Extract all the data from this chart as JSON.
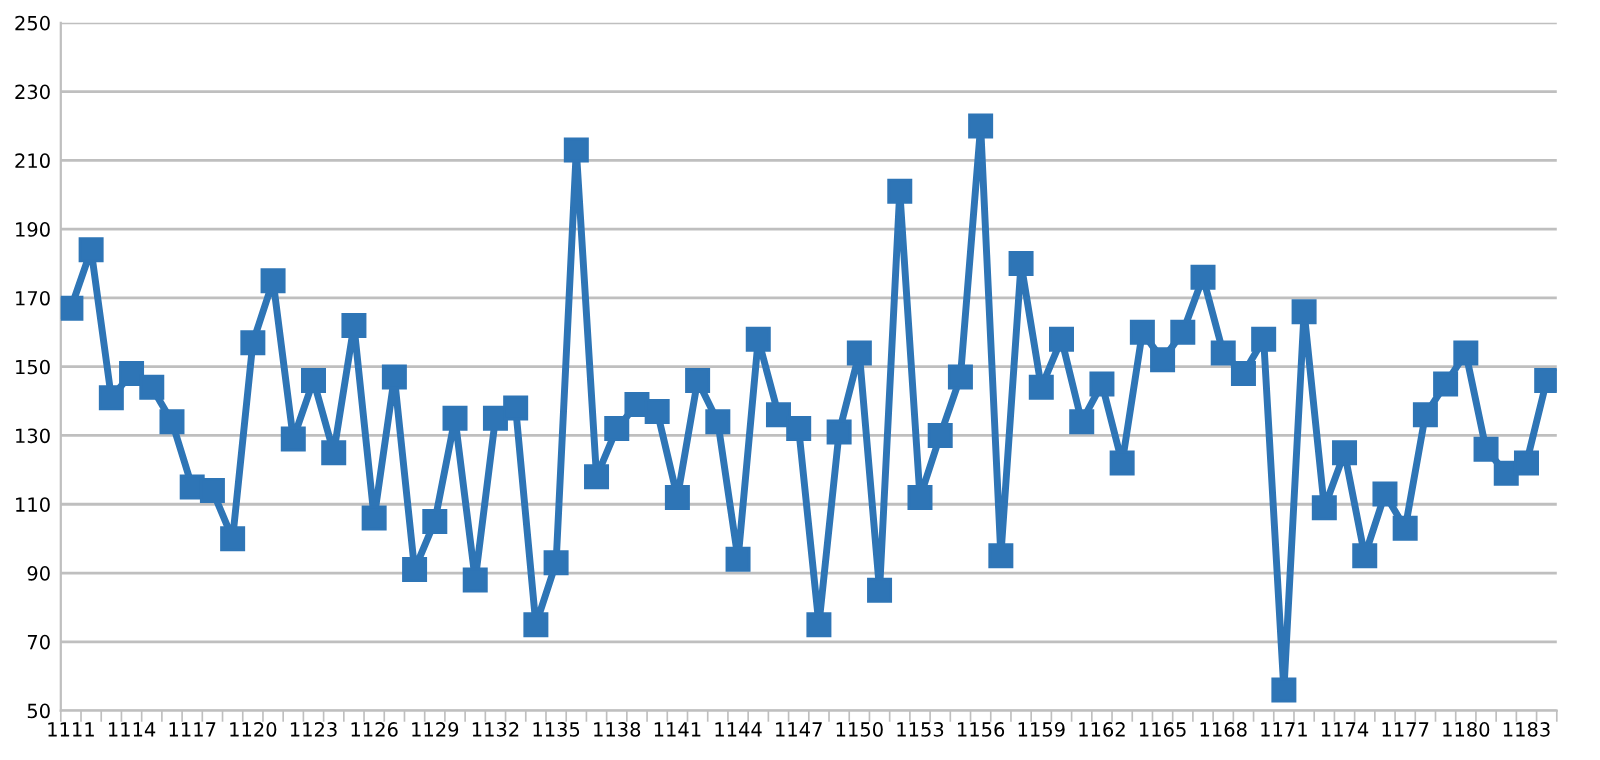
{
  "chart_data": {
    "type": "line",
    "marker": "square",
    "line_style": "solid",
    "grid": "y",
    "legend": false,
    "categories": [
      "1111",
      null,
      null,
      "1114",
      null,
      null,
      "1117",
      null,
      null,
      "1120",
      null,
      null,
      "1123",
      null,
      null,
      "1126",
      null,
      null,
      "1129",
      null,
      null,
      "1132",
      null,
      null,
      "1135",
      null,
      null,
      "1138",
      null,
      null,
      "1141",
      null,
      null,
      "1144",
      null,
      null,
      "1147",
      null,
      null,
      "1150",
      null,
      null,
      "1153",
      null,
      null,
      "1156",
      null,
      null,
      "1159",
      null,
      null,
      "1162",
      null,
      null,
      "1165",
      null,
      null,
      "1168",
      null,
      null,
      "1171",
      null,
      null,
      "1174",
      null,
      null,
      "1177",
      null,
      null,
      "1180",
      null,
      null,
      "1183",
      null
    ],
    "series": [
      {
        "color": "#2e75b6",
        "values": [
          167,
          184,
          141,
          148,
          144,
          134,
          115,
          114,
          100,
          157,
          175,
          129,
          146,
          125,
          162,
          106,
          147,
          91,
          105,
          135,
          88,
          135,
          138,
          75,
          93,
          213,
          118,
          132,
          139,
          137,
          112,
          146,
          134,
          94,
          158,
          136,
          132,
          75,
          131,
          154,
          85,
          201,
          112,
          130,
          147,
          220,
          95,
          180,
          144,
          158,
          134,
          145,
          122,
          160,
          152,
          160,
          176,
          154,
          148,
          158,
          56,
          166,
          109,
          125,
          95,
          113,
          103,
          136,
          145,
          154,
          126,
          119,
          122,
          146
        ]
      }
    ],
    "ylim": [
      50,
      250
    ],
    "yticks": [
      50,
      70,
      90,
      110,
      130,
      150,
      170,
      190,
      210,
      230,
      250
    ]
  }
}
